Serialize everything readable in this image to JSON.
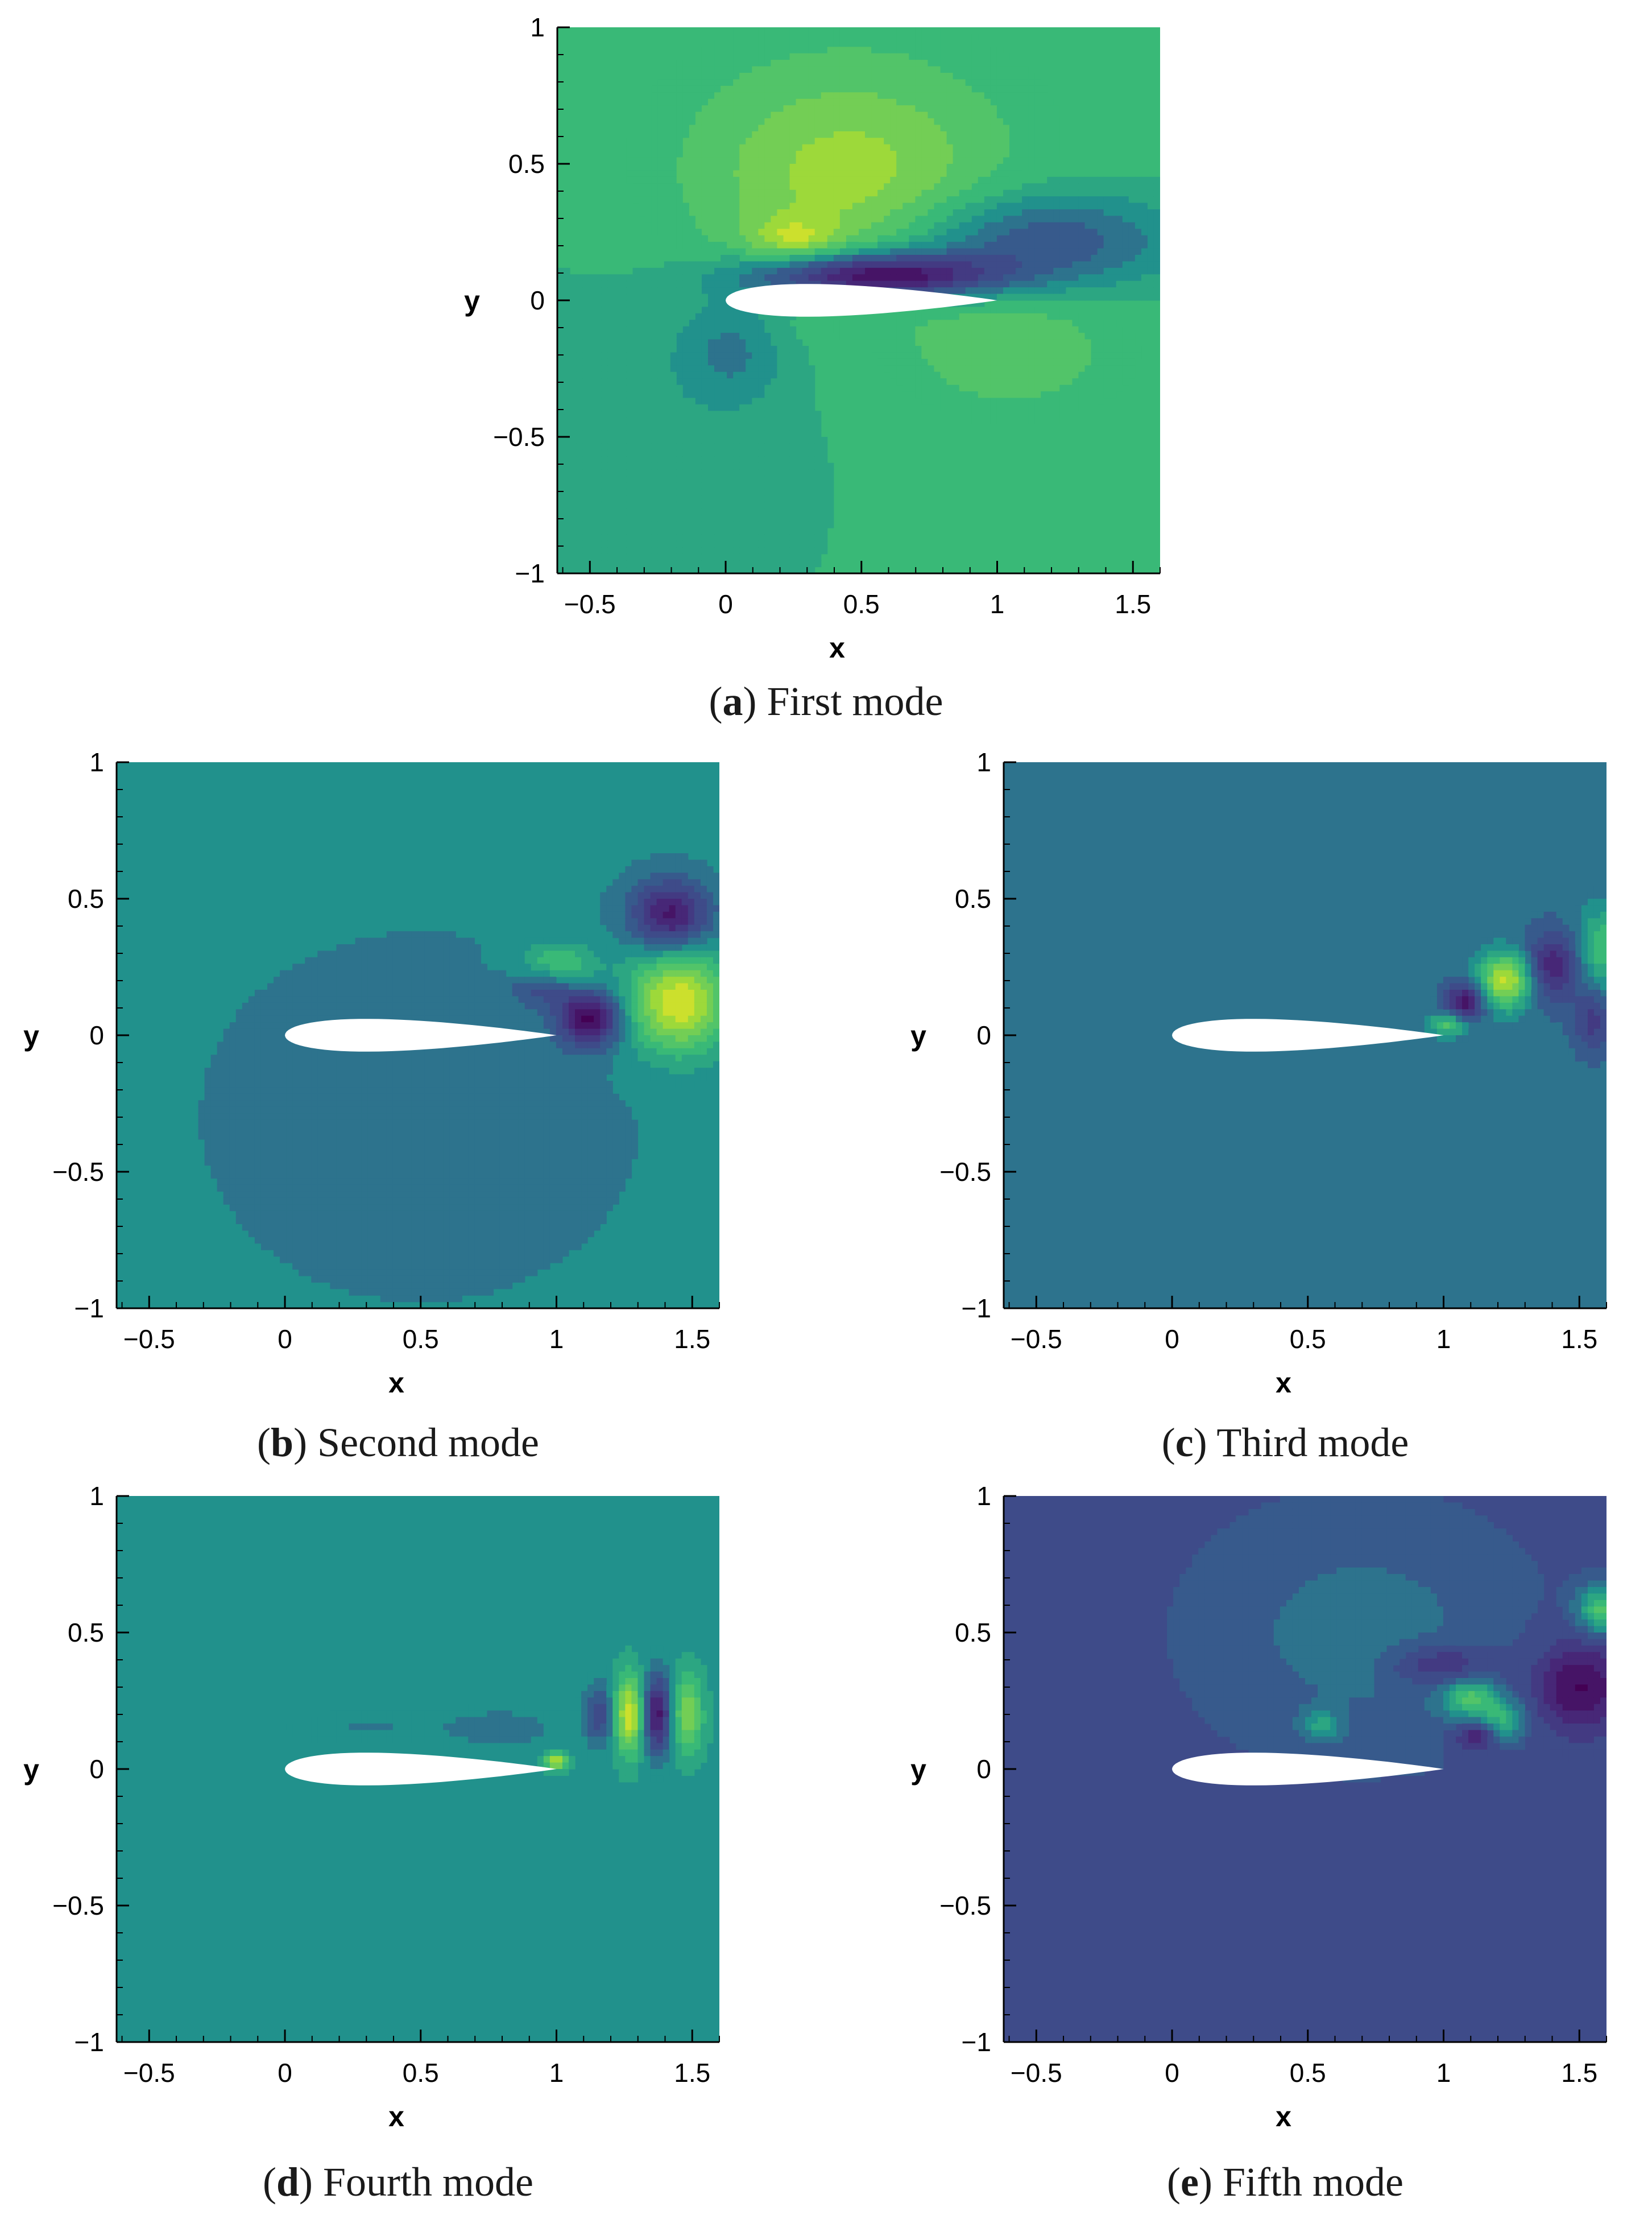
{
  "panels": [
    {
      "letter": "a",
      "caption": "First mode"
    },
    {
      "letter": "b",
      "caption": "Second mode"
    },
    {
      "letter": "c",
      "caption": "Third mode"
    },
    {
      "letter": "d",
      "caption": "Fourth mode"
    },
    {
      "letter": "e",
      "caption": "Fifth mode"
    }
  ],
  "chart_data": [
    {
      "type": "heatmap",
      "id": "a",
      "colormap": "viridis",
      "xlabel": "x",
      "ylabel": "y",
      "xlim": [
        -0.62,
        1.6
      ],
      "ylim": [
        -1,
        1
      ],
      "xticks": [
        -0.5,
        0,
        0.5,
        1,
        1.5
      ],
      "xticklabels": [
        "−0.5",
        "0",
        "0.5",
        "1",
        "1.5"
      ],
      "yticks": [
        -1,
        -0.5,
        0,
        0.5,
        1
      ],
      "yticklabels": [
        "−1",
        "−0.5",
        "0",
        "0.5",
        "1"
      ],
      "background": 0.62,
      "features": [
        {
          "x": 0.45,
          "y": 0.45,
          "sx": 0.38,
          "sy": 0.28,
          "a": 0.24
        },
        {
          "x": 0.25,
          "y": 0.22,
          "sx": 0.12,
          "sy": 0.06,
          "a": 0.18
        },
        {
          "x": 0.55,
          "y": 0.09,
          "sx": 0.32,
          "sy": 0.06,
          "a": -0.62
        },
        {
          "x": 1.15,
          "y": 0.22,
          "sx": 0.35,
          "sy": 0.12,
          "a": -0.3
        },
        {
          "x": 0.02,
          "y": -0.18,
          "sx": 0.14,
          "sy": 0.14,
          "a": -0.16
        },
        {
          "x": -0.6,
          "y": -0.7,
          "sx": 0.6,
          "sy": 0.5,
          "a": -0.08
        },
        {
          "x": 1.05,
          "y": -0.18,
          "sx": 0.25,
          "sy": 0.15,
          "a": 0.12
        }
      ]
    },
    {
      "type": "heatmap",
      "id": "b",
      "colormap": "viridis",
      "xlabel": "x",
      "ylabel": "y",
      "xlim": [
        -0.62,
        1.6
      ],
      "ylim": [
        -1,
        1
      ],
      "xticks": [
        -0.5,
        0,
        0.5,
        1,
        1.5
      ],
      "xticklabels": [
        "−0.5",
        "0",
        "0.5",
        "1",
        "1.5"
      ],
      "yticks": [
        -1,
        -0.5,
        0,
        0.5,
        1
      ],
      "yticklabels": [
        "−1",
        "−0.5",
        "0",
        "0.5",
        "1"
      ],
      "background": 0.48,
      "features": [
        {
          "x": 1.45,
          "y": 0.12,
          "sx": 0.13,
          "sy": 0.13,
          "a": 0.48
        },
        {
          "x": 1.12,
          "y": 0.06,
          "sx": 0.08,
          "sy": 0.07,
          "a": -0.46
        },
        {
          "x": 1.42,
          "y": 0.44,
          "sx": 0.1,
          "sy": 0.09,
          "a": -0.4
        },
        {
          "x": 1.0,
          "y": 0.25,
          "sx": 0.1,
          "sy": 0.06,
          "a": 0.24
        },
        {
          "x": 0.95,
          "y": 0.18,
          "sx": 0.08,
          "sy": 0.05,
          "a": -0.22
        },
        {
          "x": 0.5,
          "y": -0.3,
          "sx": 0.6,
          "sy": 0.5,
          "a": -0.05
        }
      ]
    },
    {
      "type": "heatmap",
      "id": "c",
      "colormap": "viridis",
      "xlabel": "x",
      "ylabel": "y",
      "xlim": [
        -0.62,
        1.6
      ],
      "ylim": [
        -1,
        1
      ],
      "xticks": [
        -0.5,
        0,
        0.5,
        1,
        1.5
      ],
      "xticklabels": [
        "−0.5",
        "0",
        "0.5",
        "1",
        "1.5"
      ],
      "yticks": [
        -1,
        -0.5,
        0,
        0.5,
        1
      ],
      "yticklabels": [
        "−1",
        "−0.5",
        "0",
        "0.5",
        "1"
      ],
      "background": 0.42,
      "features": [
        {
          "x": 1.23,
          "y": 0.2,
          "sx": 0.07,
          "sy": 0.07,
          "a": 0.5
        },
        {
          "x": 1.08,
          "y": 0.12,
          "sx": 0.05,
          "sy": 0.05,
          "a": -0.36
        },
        {
          "x": 1.4,
          "y": 0.25,
          "sx": 0.07,
          "sy": 0.09,
          "a": -0.3
        },
        {
          "x": 1.58,
          "y": 0.32,
          "sx": 0.06,
          "sy": 0.1,
          "a": 0.25
        },
        {
          "x": 1.55,
          "y": 0.05,
          "sx": 0.05,
          "sy": 0.08,
          "a": -0.2
        },
        {
          "x": 1.02,
          "y": 0.04,
          "sx": 0.05,
          "sy": 0.03,
          "a": 0.3
        }
      ]
    },
    {
      "type": "heatmap",
      "id": "d",
      "colormap": "viridis",
      "xlabel": "x",
      "ylabel": "y",
      "xlim": [
        -0.62,
        1.6
      ],
      "ylim": [
        -1,
        1
      ],
      "xticks": [
        -0.5,
        0,
        0.5,
        1,
        1.5
      ],
      "xticklabels": [
        "−0.5",
        "0",
        "0.5",
        "1",
        "1.5"
      ],
      "yticks": [
        -1,
        -0.5,
        0,
        0.5,
        1
      ],
      "yticklabels": [
        "−1",
        "−0.5",
        "0",
        "0.5",
        "1"
      ],
      "background": 0.52,
      "features": [
        {
          "x": 1.27,
          "y": 0.2,
          "sx": 0.04,
          "sy": 0.1,
          "a": 0.44
        },
        {
          "x": 1.37,
          "y": 0.2,
          "sx": 0.04,
          "sy": 0.1,
          "a": -0.46
        },
        {
          "x": 1.48,
          "y": 0.2,
          "sx": 0.04,
          "sy": 0.1,
          "a": 0.3
        },
        {
          "x": 1.16,
          "y": 0.2,
          "sx": 0.04,
          "sy": 0.08,
          "a": -0.25
        },
        {
          "x": 1.0,
          "y": 0.03,
          "sx": 0.03,
          "sy": 0.02,
          "a": 0.4
        },
        {
          "x": 0.8,
          "y": 0.15,
          "sx": 0.15,
          "sy": 0.05,
          "a": -0.1
        },
        {
          "x": 0.3,
          "y": 0.15,
          "sx": 0.2,
          "sy": 0.04,
          "a": -0.06
        }
      ]
    },
    {
      "type": "heatmap",
      "id": "e",
      "colormap": "viridis",
      "xlabel": "x",
      "ylabel": "y",
      "xlim": [
        -0.62,
        1.6
      ],
      "ylim": [
        -1,
        1
      ],
      "xticks": [
        -0.5,
        0,
        0.5,
        1,
        1.5
      ],
      "xticklabels": [
        "−0.5",
        "0",
        "0.5",
        "1",
        "1.5"
      ],
      "yticks": [
        -1,
        -0.5,
        0,
        0.5,
        1
      ],
      "yticklabels": [
        "−1",
        "−0.5",
        "0",
        "0.5",
        "1"
      ],
      "background": 0.32,
      "features": [
        {
          "x": 1.1,
          "y": 0.26,
          "sx": 0.07,
          "sy": 0.05,
          "a": 0.34
        },
        {
          "x": 1.22,
          "y": 0.18,
          "sx": 0.06,
          "sy": 0.05,
          "a": 0.28
        },
        {
          "x": 1.5,
          "y": 0.3,
          "sx": 0.12,
          "sy": 0.12,
          "a": -0.3
        },
        {
          "x": 1.58,
          "y": 0.58,
          "sx": 0.06,
          "sy": 0.06,
          "a": 0.38
        },
        {
          "x": 1.12,
          "y": 0.12,
          "sx": 0.05,
          "sy": 0.04,
          "a": -0.25
        },
        {
          "x": 1.0,
          "y": 0.38,
          "sx": 0.12,
          "sy": 0.05,
          "a": -0.2
        },
        {
          "x": 0.55,
          "y": 0.16,
          "sx": 0.05,
          "sy": 0.04,
          "a": 0.2
        },
        {
          "x": 0.7,
          "y": 0.5,
          "sx": 0.4,
          "sy": 0.3,
          "a": 0.1
        }
      ]
    }
  ]
}
